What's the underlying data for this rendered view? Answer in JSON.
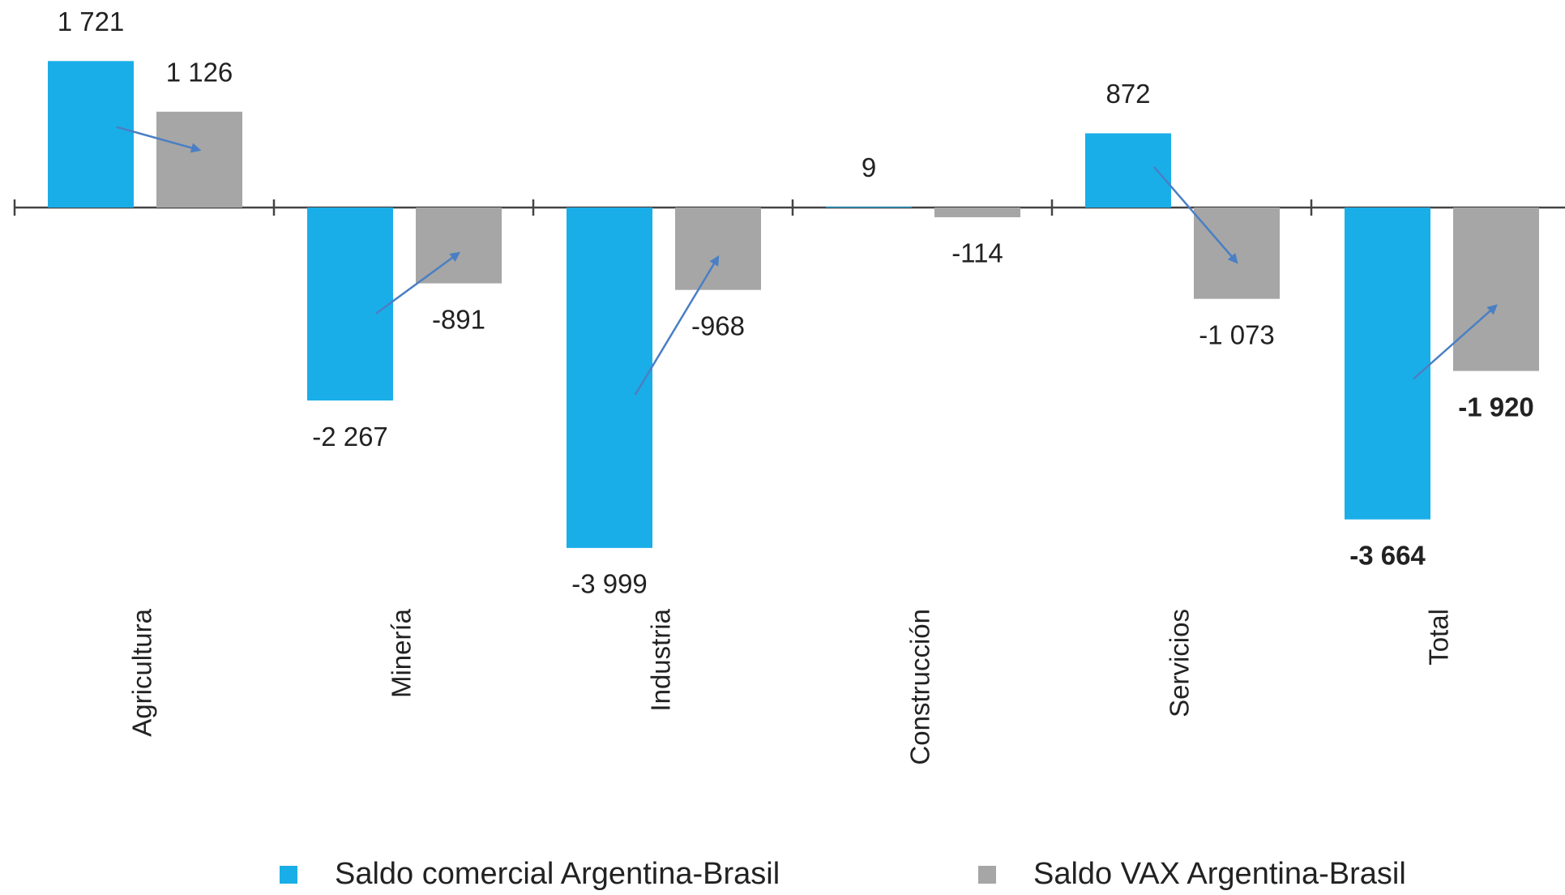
{
  "chart_data": {
    "type": "bar",
    "categories": [
      "Agricultura",
      "Minería",
      "Industria",
      "Construcción",
      "Servicios",
      "Total"
    ],
    "series": [
      {
        "name": "Saldo comercial Argentina-Brasil",
        "color": "#1aaee8",
        "values": [
          1721,
          -2267,
          -3999,
          9,
          872,
          -3664
        ],
        "value_labels": [
          "1 721",
          "-2 267",
          "-3 999",
          "9",
          "872",
          "-3 664"
        ]
      },
      {
        "name": "Saldo VAX Argentina-Brasil",
        "color": "#a6a6a6",
        "values": [
          1126,
          -891,
          -968,
          -114,
          -1073,
          -1920
        ],
        "value_labels": [
          "1 126",
          "-891",
          "-968",
          "-114",
          "-1 073",
          "-1 920"
        ]
      }
    ],
    "legend": "bottom"
  }
}
